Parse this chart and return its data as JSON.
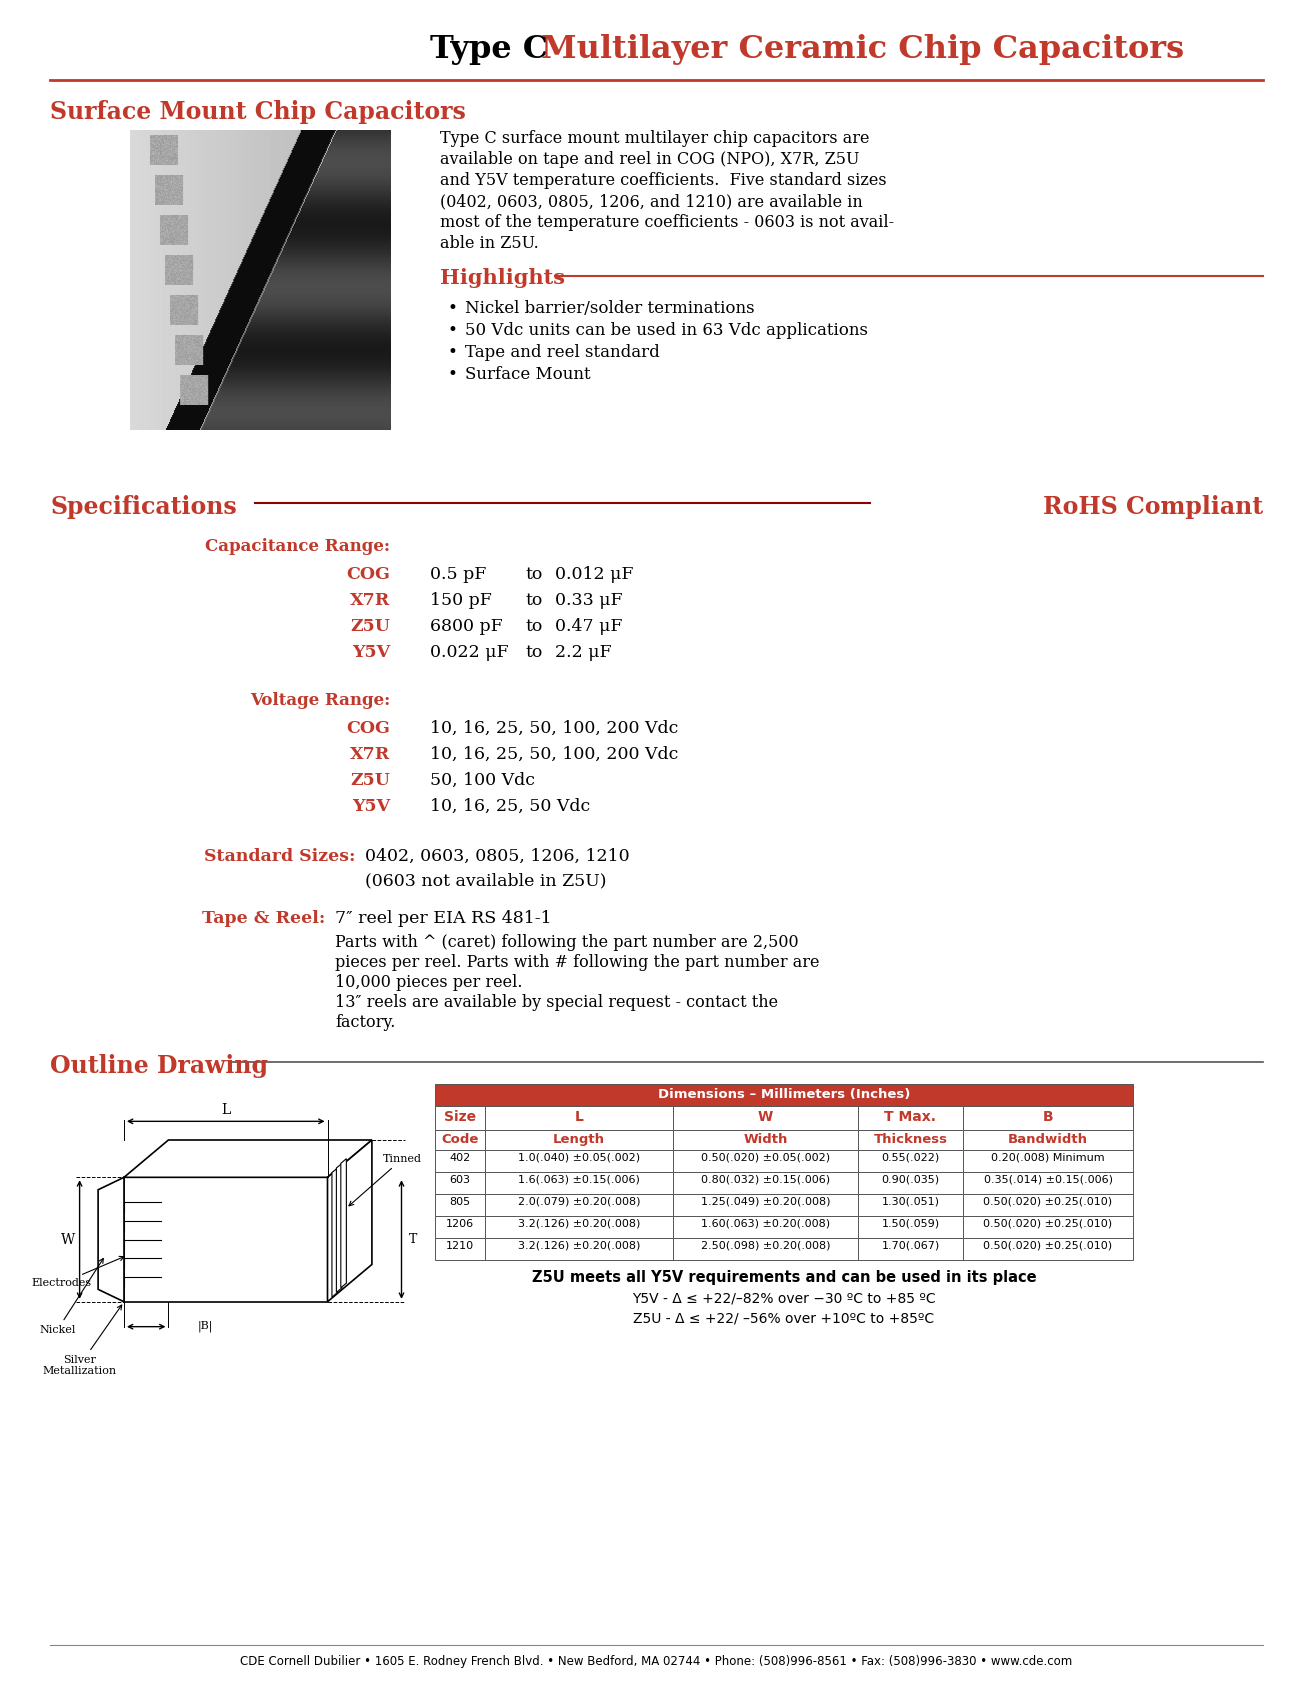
{
  "title_black": "Type C",
  "title_red": " Multilayer Ceramic Chip Capacitors",
  "section1_title": "Surface Mount Chip Capacitors",
  "description_lines": [
    "Type C surface mount multilayer chip capacitors are",
    "available on tape and reel in COG (NPO), X7R, Z5U",
    "and Y5V temperature coefficients.  Five standard sizes",
    "(0402, 0603, 0805, 1206, and 1210) are available in",
    "most of the temperature coefficients - 0603 is not avail-",
    "able in Z5U."
  ],
  "highlights_title": "Highlights",
  "highlights": [
    "Nickel barrier/solder terminations",
    "50 Vdc units can be used in 63 Vdc applications",
    "Tape and reel standard",
    "Surface Mount"
  ],
  "specs_title": "Specifications",
  "rohs_title": "RoHS Compliant",
  "cap_range_title": "Capacitance Range:",
  "cap_range": [
    {
      "type": "COG",
      "from": "0.5 pF",
      "to": "0.012 μF"
    },
    {
      "type": "X7R",
      "from": "150 pF",
      "to": "0.33 μF"
    },
    {
      "type": "Z5U",
      "from": "6800 pF",
      "to": "0.47 μF"
    },
    {
      "type": "Y5V",
      "from": "0.022 μF",
      "to": "2.2 μF"
    }
  ],
  "volt_range_title": "Voltage Range:",
  "volt_range": [
    {
      "type": "COG",
      "vals": "10, 16, 25, 50, 100, 200 Vdc"
    },
    {
      "type": "X7R",
      "vals": "10, 16, 25, 50, 100, 200 Vdc"
    },
    {
      "type": "Z5U",
      "vals": "50, 100 Vdc"
    },
    {
      "type": "Y5V",
      "vals": "10, 16, 25, 50 Vdc"
    }
  ],
  "std_sizes_label": "Standard Sizes:",
  "std_sizes_val": "0402, 0603, 0805, 1206, 1210",
  "std_sizes_note": "(0603 not available in Z5U)",
  "tape_reel_label": "Tape & Reel:",
  "tape_reel_line1": "7″ reel per EIA RS 481-1",
  "tape_reel_lines2": [
    "Parts with ^ (caret) following the part number are 2,500",
    "pieces per reel. Parts with # following the part number are",
    "10,000 pieces per reel."
  ],
  "tape_reel_lines3": [
    "13″ reels are available by special request - contact the",
    "factory."
  ],
  "outline_title": "Outline Drawing",
  "table_header_main": "Dimensions – Millimeters (Inches)",
  "table_headers": [
    "Size",
    "L",
    "W",
    "T Max.",
    "B"
  ],
  "table_subheaders": [
    "Code",
    "Length",
    "Width",
    "Thickness",
    "Bandwidth"
  ],
  "table_rows": [
    [
      "402",
      "1.0(.040) ±0.05(.002)",
      "0.50(.020) ±0.05(.002)",
      "0.55(.022)",
      "0.20(.008) Minimum"
    ],
    [
      "603",
      "1.6(.063) ±0.15(.006)",
      "0.80(.032) ±0.15(.006)",
      "0.90(.035)",
      "0.35(.014) ±0.15(.006)"
    ],
    [
      "805",
      "2.0(.079) ±0.20(.008)",
      "1.25(.049) ±0.20(.008)",
      "1.30(.051)",
      "0.50(.020) ±0.25(.010)"
    ],
    [
      "1206",
      "3.2(.126) ±0.20(.008)",
      "1.60(.063) ±0.20(.008)",
      "1.50(.059)",
      "0.50(.020) ±0.25(.010)"
    ],
    [
      "1210",
      "3.2(.126) ±0.20(.008)",
      "2.50(.098) ±0.20(.008)",
      "1.70(.067)",
      "0.50(.020) ±0.25(.010)"
    ]
  ],
  "z5u_note1": "Z5U meets all Y5V requirements and can be used in its place",
  "z5u_note2": "Y5V - Δ ≤ +22/–82% over −30 ºC to +85 ºC",
  "z5u_note3": "Z5U - Δ ≤ +22/ –56% over +10ºC to +85ºC",
  "footer": "CDE Cornell Dubilier • 1605 E. Rodney French Blvd. • New Bedford, MA 02744 • Phone: (508)996-8561 • Fax: (508)996-3830 • www.cde.com",
  "red_color": "#C0392B",
  "dark_red": "#8B0000",
  "black": "#000000",
  "table_header_bg": "#C0392B"
}
